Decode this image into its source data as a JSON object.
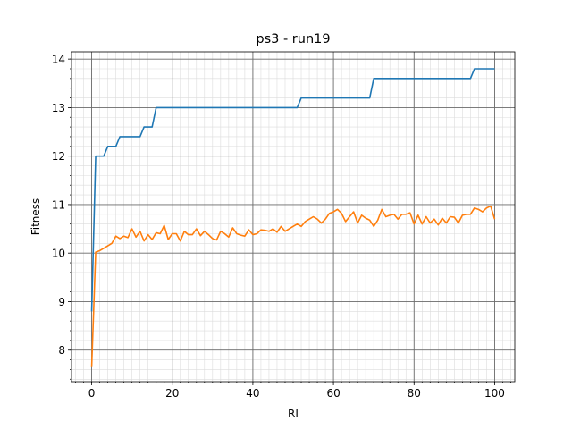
{
  "chart_data": {
    "type": "line",
    "title": "ps3 - run19",
    "xlabel": "RI",
    "ylabel": "Fitness",
    "xlim": [
      -5,
      105
    ],
    "ylim": [
      7.35,
      14.15
    ],
    "x_ticks": [
      0,
      20,
      40,
      60,
      80,
      100
    ],
    "y_ticks": [
      8,
      9,
      10,
      11,
      12,
      13,
      14
    ],
    "x_minor_step": 2,
    "y_minor_step": 0.2,
    "grid": true,
    "legend": "none",
    "series": [
      {
        "color": "#1f77b4",
        "values": [
          8.8,
          12.0,
          12.0,
          12.0,
          12.2,
          12.2,
          12.2,
          12.4,
          12.4,
          12.4,
          12.4,
          12.4,
          12.4,
          12.6,
          12.6,
          12.6,
          13.0,
          13.0,
          13.0,
          13.0,
          13.0,
          13.0,
          13.0,
          13.0,
          13.0,
          13.0,
          13.0,
          13.0,
          13.0,
          13.0,
          13.0,
          13.0,
          13.0,
          13.0,
          13.0,
          13.0,
          13.0,
          13.0,
          13.0,
          13.0,
          13.0,
          13.0,
          13.0,
          13.0,
          13.0,
          13.0,
          13.0,
          13.0,
          13.0,
          13.0,
          13.0,
          13.0,
          13.2,
          13.2,
          13.2,
          13.2,
          13.2,
          13.2,
          13.2,
          13.2,
          13.2,
          13.2,
          13.2,
          13.2,
          13.2,
          13.2,
          13.2,
          13.2,
          13.2,
          13.2,
          13.6,
          13.6,
          13.6,
          13.6,
          13.6,
          13.6,
          13.6,
          13.6,
          13.6,
          13.6,
          13.6,
          13.6,
          13.6,
          13.6,
          13.6,
          13.6,
          13.6,
          13.6,
          13.6,
          13.6,
          13.6,
          13.6,
          13.6,
          13.6,
          13.6,
          13.8,
          13.8,
          13.8,
          13.8,
          13.8,
          13.8
        ]
      },
      {
        "color": "#ff7f0e",
        "values": [
          7.65,
          10.02,
          10.05,
          10.1,
          10.15,
          10.2,
          10.35,
          10.3,
          10.35,
          10.32,
          10.5,
          10.33,
          10.45,
          10.25,
          10.38,
          10.28,
          10.42,
          10.4,
          10.57,
          10.28,
          10.4,
          10.4,
          10.25,
          10.45,
          10.38,
          10.38,
          10.5,
          10.36,
          10.45,
          10.38,
          10.3,
          10.27,
          10.45,
          10.4,
          10.33,
          10.52,
          10.4,
          10.37,
          10.35,
          10.48,
          10.38,
          10.4,
          10.48,
          10.47,
          10.45,
          10.5,
          10.43,
          10.55,
          10.45,
          10.5,
          10.55,
          10.6,
          10.55,
          10.65,
          10.7,
          10.75,
          10.7,
          10.62,
          10.7,
          10.82,
          10.85,
          10.9,
          10.82,
          10.65,
          10.75,
          10.85,
          10.62,
          10.78,
          10.72,
          10.68,
          10.55,
          10.68,
          10.9,
          10.75,
          10.78,
          10.8,
          10.7,
          10.8,
          10.8,
          10.83,
          10.6,
          10.78,
          10.6,
          10.75,
          10.62,
          10.7,
          10.58,
          10.72,
          10.62,
          10.75,
          10.74,
          10.62,
          10.78,
          10.8,
          10.8,
          10.93,
          10.9,
          10.85,
          10.93,
          10.97,
          10.7
        ]
      }
    ]
  }
}
